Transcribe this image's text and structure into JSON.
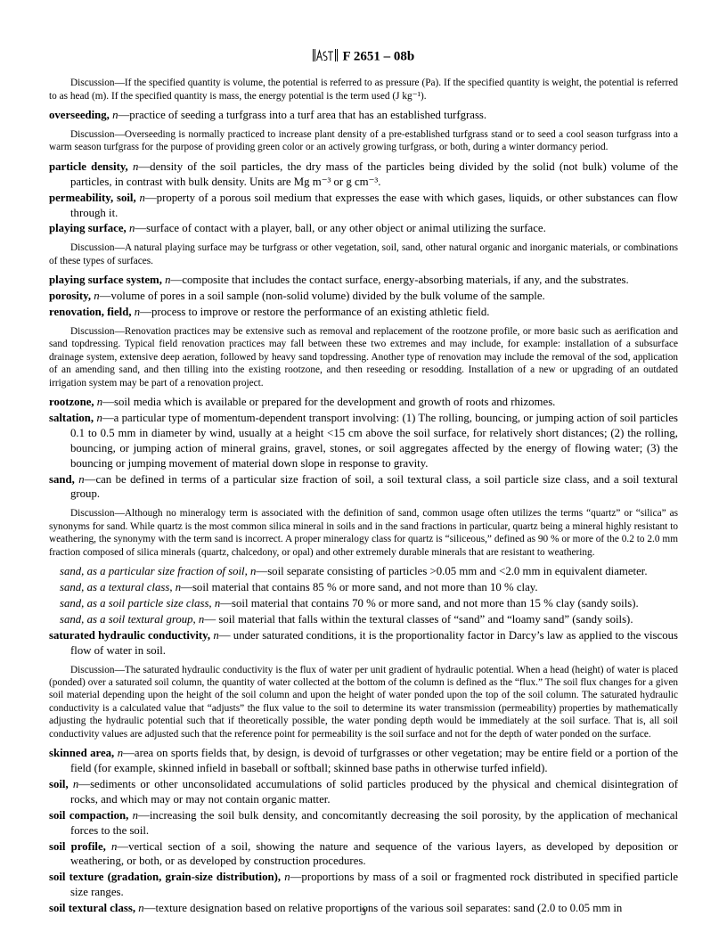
{
  "header": {
    "doc_code": "F 2651 – 08b"
  },
  "page_number": "3",
  "entries": [
    {
      "type": "disc",
      "content": "DISCUSSION—If the specified quantity is volume, the potential is referred to as pressure (Pa). If the specified quantity is weight, the potential is referred to as head (m). If the specified quantity is mass, the energy potential is the term used (J kg⁻¹)."
    },
    {
      "type": "term",
      "term": "overseeding,",
      "pos": "n",
      "def": "—practice of seeding a turfgrass into a turf area that has an established turfgrass."
    },
    {
      "type": "disc",
      "content": "DISCUSSION—Overseeding is normally practiced to increase plant density of a pre-established turfgrass stand or to seed a cool season turfgrass into a warm season turfgrass for the purpose of providing green color or an actively growing turfgrass, or both, during a winter dormancy period."
    },
    {
      "type": "term",
      "term": "particle density,",
      "pos": "n",
      "def": "—density of the soil particles, the dry mass of the particles being divided by the solid (not bulk) volume of the particles, in contrast with bulk density. Units are Mg m⁻³ or g cm⁻³."
    },
    {
      "type": "term",
      "term": "permeability, soil,",
      "pos": "n",
      "def": "—property of a porous soil medium that expresses the ease with which gases, liquids, or other substances can flow through it."
    },
    {
      "type": "term",
      "term": "playing surface,",
      "pos": "n",
      "def": "—surface of contact with a player, ball, or any other object or animal utilizing the surface."
    },
    {
      "type": "disc",
      "content": "DISCUSSION—A natural playing surface may be turfgrass or other vegetation, soil, sand, other natural organic and inorganic materials, or combinations of these types of surfaces."
    },
    {
      "type": "term",
      "term": "playing surface system,",
      "pos": "n",
      "def": "—composite that includes the contact surface, energy-absorbing materials, if any, and the substrates."
    },
    {
      "type": "term",
      "term": "porosity,",
      "pos": "n",
      "def": "—volume of pores in a soil sample (non-solid volume) divided by the bulk volume of the sample."
    },
    {
      "type": "term",
      "term": "renovation, field,",
      "pos": "n",
      "def": "—process to improve or restore the performance of an existing athletic field."
    },
    {
      "type": "disc",
      "content": "DISCUSSION—Renovation practices may be extensive such as removal and replacement of the rootzone profile, or more basic such as aerification and sand topdressing. Typical field renovation practices may fall between these two extremes and may include, for example: installation of a subsurface drainage system, extensive deep aeration, followed by heavy sand topdressing. Another type of renovation may include the removal of the sod, application of an amending sand, and then tilling into the existing rootzone, and then reseeding or resodding. Installation of a new or upgrading of an outdated irrigation system may be part of a renovation project."
    },
    {
      "type": "term",
      "term": "rootzone,",
      "pos": "n",
      "def": "—soil media which is available or prepared for the development and growth of roots and rhizomes."
    },
    {
      "type": "term",
      "term": "saltation,",
      "pos": "n",
      "def": "—a particular type of momentum-dependent transport involving: (1) The rolling, bouncing, or jumping action of soil particles 0.1 to 0.5 mm in diameter by wind, usually at a height <15 cm above the soil surface, for relatively short distances; (2) the rolling, bouncing, or jumping action of mineral grains, gravel, stones, or soil aggregates affected by the energy of flowing water; (3) the bouncing or jumping movement of material down slope in response to gravity."
    },
    {
      "type": "term",
      "term": "sand,",
      "pos": "n",
      "def": "—can be defined in terms of a particular size fraction of soil, a soil textural class, a soil particle size class, and a soil textural group."
    },
    {
      "type": "disc",
      "content": "DISCUSSION—Although no mineralogy term is associated with the definition of sand, common usage often utilizes the terms \"quartz\" or \"silica\" as synonyms for sand. While quartz is the most common silica mineral in soils and in the sand fractions in particular, quartz being a mineral highly resistant to weathering, the synonymy with the term sand is incorrect. A proper mineralogy class for quartz is \"siliceous,\" defined as 90 % or more of the 0.2 to 2.0 mm fraction composed of silica minerals (quartz, chalcedony, or opal) and other extremely durable minerals that are resistant to weathering."
    },
    {
      "type": "subterm",
      "term": "sand, as a particular size fraction of soil,",
      "pos": "n",
      "def": "—soil separate consisting of particles >0.05 mm and <2.0 mm in equivalent diameter."
    },
    {
      "type": "subterm",
      "term": "sand, as a textural class,",
      "pos": "n",
      "def": "—soil material that contains 85 % or more sand, and not more than 10 % clay."
    },
    {
      "type": "subterm",
      "term": "sand, as a soil particle size class,",
      "pos": "n",
      "def": "—soil material that contains 70 % or more sand, and not more than 15 % clay (sandy soils)."
    },
    {
      "type": "subterm",
      "term": "sand, as a soil textural group,",
      "pos": "n",
      "def": "— soil material that falls within the textural classes of \"sand\" and \"loamy sand\" (sandy soils)."
    },
    {
      "type": "term",
      "term": "saturated hydraulic conductivity,",
      "pos": "n",
      "def": "— under saturated conditions, it is the proportionality factor in Darcy's law as applied to the viscous flow of water in soil."
    },
    {
      "type": "disc",
      "content": "DISCUSSION—The saturated hydraulic conductivity is the flux of water per unit gradient of hydraulic potential. When a head (height) of water is placed (ponded) over a saturated soil column, the quantity of water collected at the bottom of the column is defined as the \"flux.\" The soil flux changes for a given soil material depending upon the height of the soil column and upon the height of water ponded upon the top of the soil column. The saturated hydraulic conductivity is a calculated value that \"adjusts\" the flux value to the soil to determine its water transmission (permeability) properties by mathematically adjusting the hydraulic potential such that if theoretically possible, the water ponding depth would be immediately at the soil surface. That is, all soil conductivity values are adjusted such that the reference point for permeability is the soil surface and not for the depth of water ponded on the surface."
    },
    {
      "type": "term",
      "term": "skinned area,",
      "pos": "n",
      "def": "—area on sports fields that, by design, is devoid of turfgrasses or other vegetation; may be entire field or a portion of the field (for example, skinned infield in baseball or softball; skinned base paths in otherwise turfed infield)."
    },
    {
      "type": "term",
      "term": "soil,",
      "pos": "n",
      "def": "—sediments or other unconsolidated accumulations of solid particles produced by the physical and chemical disintegration of rocks, and which may or may not contain organic matter."
    },
    {
      "type": "term",
      "term": "soil compaction,",
      "pos": "n",
      "def": "—increasing the soil bulk density, and concomitantly decreasing the soil porosity, by the application of mechanical forces to the soil."
    },
    {
      "type": "term",
      "term": "soil profile,",
      "pos": "n",
      "def": "—vertical section of a soil, showing the nature and sequence of the various layers, as developed by deposition or weathering, or both, or as developed by construction procedures."
    },
    {
      "type": "term",
      "term": "soil texture (gradation, grain-size distribution),",
      "pos": "n",
      "def": "—proportions by mass of a soil or fragmented rock distributed in specified particle size ranges."
    },
    {
      "type": "term",
      "term": "soil textural class,",
      "pos": "n",
      "def": "—texture designation based on relative proportions of the various soil separates: sand (2.0 to 0.05 mm in"
    }
  ]
}
